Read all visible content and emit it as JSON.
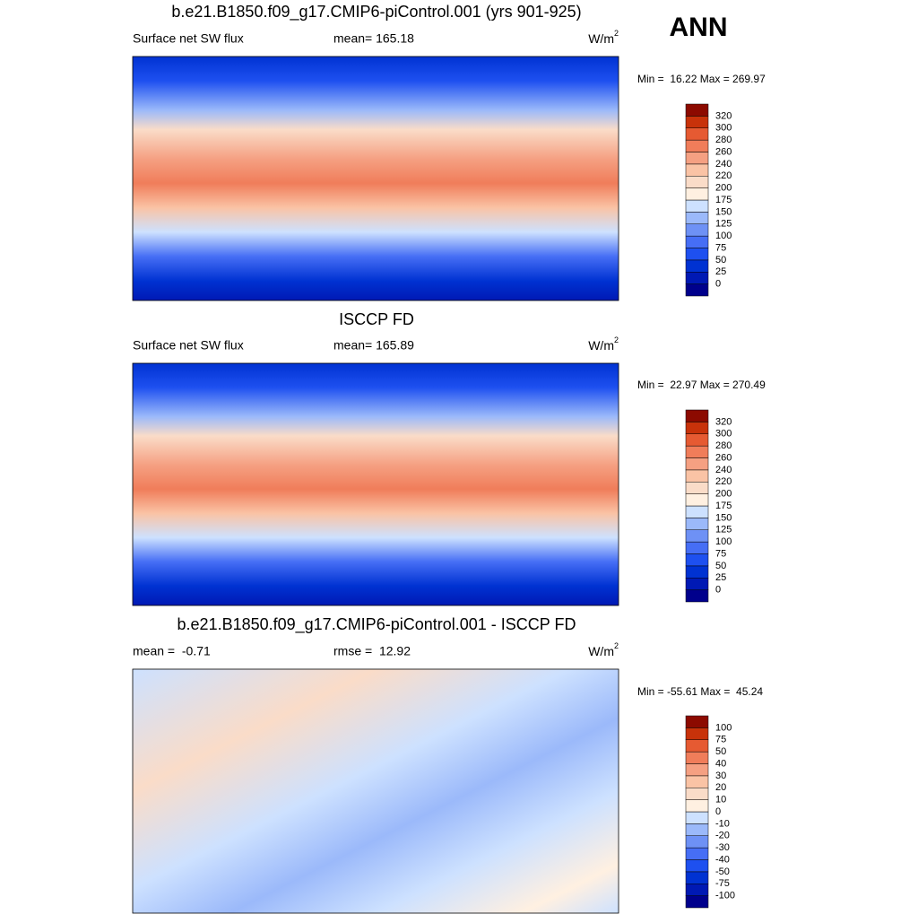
{
  "season": "ANN",
  "panels": [
    {
      "title": "b.e21.B1850.f09_g17.CMIP6-piControl.001 (yrs 901-925)",
      "left": "Surface net SW flux",
      "center": "mean= 165.18",
      "units": "W/m",
      "units_power": "2",
      "minmax": "Min =  16.22 Max = 269.97",
      "colorbar": {
        "levels": [
          0,
          25,
          50,
          75,
          100,
          125,
          150,
          175,
          200,
          220,
          240,
          260,
          280,
          300,
          320
        ],
        "colors": [
          "#00008c",
          "#0019b4",
          "#0032d2",
          "#1e50f0",
          "#466ef5",
          "#6e91f5",
          "#9bb9fa",
          "#cde1ff",
          "#fff0e1",
          "#fadcc8",
          "#fac3a5",
          "#f5a082",
          "#f07d5a",
          "#e65a32",
          "#c8320a",
          "#8c0a00"
        ]
      }
    },
    {
      "title": "ISCCP FD",
      "left": "Surface net SW flux",
      "center": "mean= 165.89",
      "units": "W/m",
      "units_power": "2",
      "minmax": "Min =  22.97 Max = 270.49",
      "colorbar": {
        "levels": [
          0,
          25,
          50,
          75,
          100,
          125,
          150,
          175,
          200,
          220,
          240,
          260,
          280,
          300,
          320
        ],
        "colors": [
          "#00008c",
          "#0019b4",
          "#0032d2",
          "#1e50f0",
          "#466ef5",
          "#6e91f5",
          "#9bb9fa",
          "#cde1ff",
          "#fff0e1",
          "#fadcc8",
          "#fac3a5",
          "#f5a082",
          "#f07d5a",
          "#e65a32",
          "#c8320a",
          "#8c0a00"
        ]
      }
    },
    {
      "title": "b.e21.B1850.f09_g17.CMIP6-piControl.001 - ISCCP FD",
      "left": "mean =  -0.71",
      "center": "rmse =  12.92",
      "units": "W/m",
      "units_power": "2",
      "minmax": "Min = -55.61 Max =  45.24",
      "colorbar": {
        "levels": [
          -100,
          -75,
          -50,
          -40,
          -30,
          -20,
          -10,
          0,
          10,
          20,
          30,
          40,
          50,
          75,
          100
        ],
        "colors": [
          "#00008c",
          "#0019b4",
          "#0032d2",
          "#1e50f0",
          "#466ef5",
          "#6e91f5",
          "#9bb9fa",
          "#cde1ff",
          "#fff0e1",
          "#fadcc8",
          "#fac3a5",
          "#f5a082",
          "#f07d5a",
          "#e65a32",
          "#c8320a",
          "#8c0a00"
        ]
      }
    }
  ]
}
